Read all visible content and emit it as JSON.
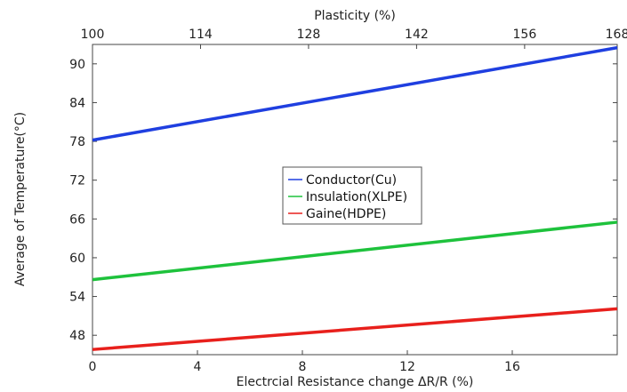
{
  "chart_data": {
    "type": "line",
    "xlabel": "Electrcial Resistance change ΔR/R (%)",
    "x2label": "Plasticity (%)",
    "ylabel": "Average of Temperature(°C)",
    "xlim": [
      0,
      20
    ],
    "x2lim": [
      100,
      168
    ],
    "ylim": [
      45,
      93
    ],
    "xticks": [
      0,
      4,
      8,
      12,
      16
    ],
    "x2ticks": [
      100,
      114,
      128,
      142,
      156,
      168
    ],
    "yticks": [
      48,
      54,
      60,
      66,
      72,
      78,
      84,
      90
    ],
    "legend_position": "center",
    "series": [
      {
        "name": "Conductor(Cu)",
        "color": "#1f3fe0",
        "x": [
          0,
          20
        ],
        "y": [
          78.2,
          92.5
        ]
      },
      {
        "name": "Insulation(XLPE)",
        "color": "#1ec23c",
        "x": [
          0,
          20
        ],
        "y": [
          56.6,
          65.5
        ]
      },
      {
        "name": "Gaine(HDPE)",
        "color": "#e8201c",
        "x": [
          0,
          20
        ],
        "y": [
          45.8,
          52.1
        ]
      }
    ]
  }
}
